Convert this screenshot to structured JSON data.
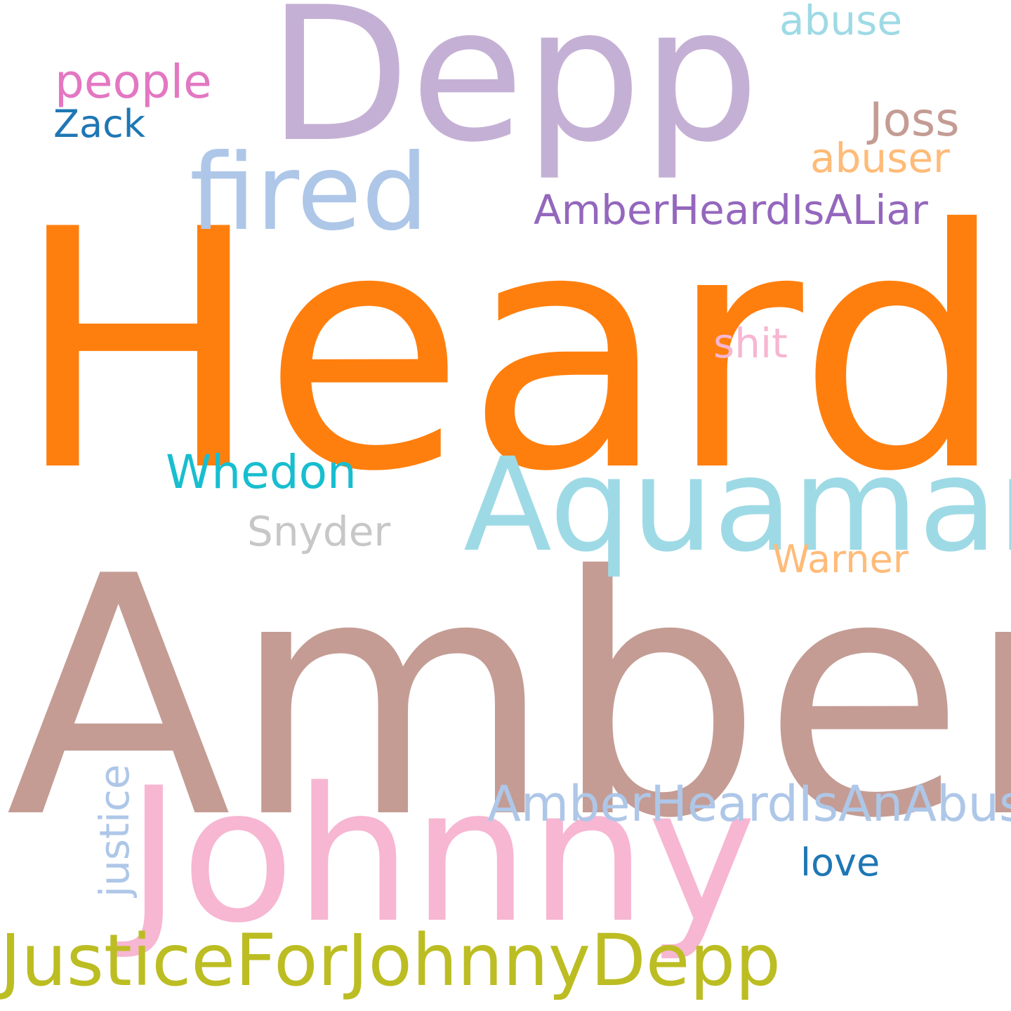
{
  "word_cloud": {
    "background_color": "#ffffff",
    "words": [
      {
        "key": "amber",
        "text": "Amber",
        "color": "#c49c94"
      },
      {
        "key": "heard",
        "text": "Heard",
        "color": "#ff7f0e"
      },
      {
        "key": "depp",
        "text": "Depp",
        "color": "#c5b0d5"
      },
      {
        "key": "johnny",
        "text": "Johnny",
        "color": "#f7b6d2"
      },
      {
        "key": "aquaman",
        "text": "Aquaman",
        "color": "#9edae5"
      },
      {
        "key": "fired",
        "text": "fired",
        "color": "#aec7e8"
      },
      {
        "key": "jfjd",
        "text": "JusticeForJohnnyDepp",
        "color": "#bcbd22"
      },
      {
        "key": "aha",
        "text": "AmberHeardIsAnAbuser",
        "color": "#aec7e8"
      },
      {
        "key": "ahil",
        "text": "AmberHeardIsALiar",
        "color": "#9467bd"
      },
      {
        "key": "whedon",
        "text": "Whedon",
        "color": "#17becf"
      },
      {
        "key": "people",
        "text": "people",
        "color": "#e377c2"
      },
      {
        "key": "joss",
        "text": "Joss",
        "color": "#c49c94"
      },
      {
        "key": "abuser",
        "text": "abuser",
        "color": "#ffbb78"
      },
      {
        "key": "snyder",
        "text": "Snyder",
        "color": "#c7c7c7"
      },
      {
        "key": "warner",
        "text": "Warner",
        "color": "#ffbb78"
      },
      {
        "key": "shit",
        "text": "shit",
        "color": "#f7b6d2"
      },
      {
        "key": "abuse",
        "text": "abuse",
        "color": "#9edae5"
      },
      {
        "key": "zack",
        "text": "Zack",
        "color": "#1f77b4"
      },
      {
        "key": "love",
        "text": "love",
        "color": "#1f77b4"
      },
      {
        "key": "justice",
        "text": "justice",
        "color": "#aec7e8",
        "orientation": "vertical"
      }
    ]
  }
}
